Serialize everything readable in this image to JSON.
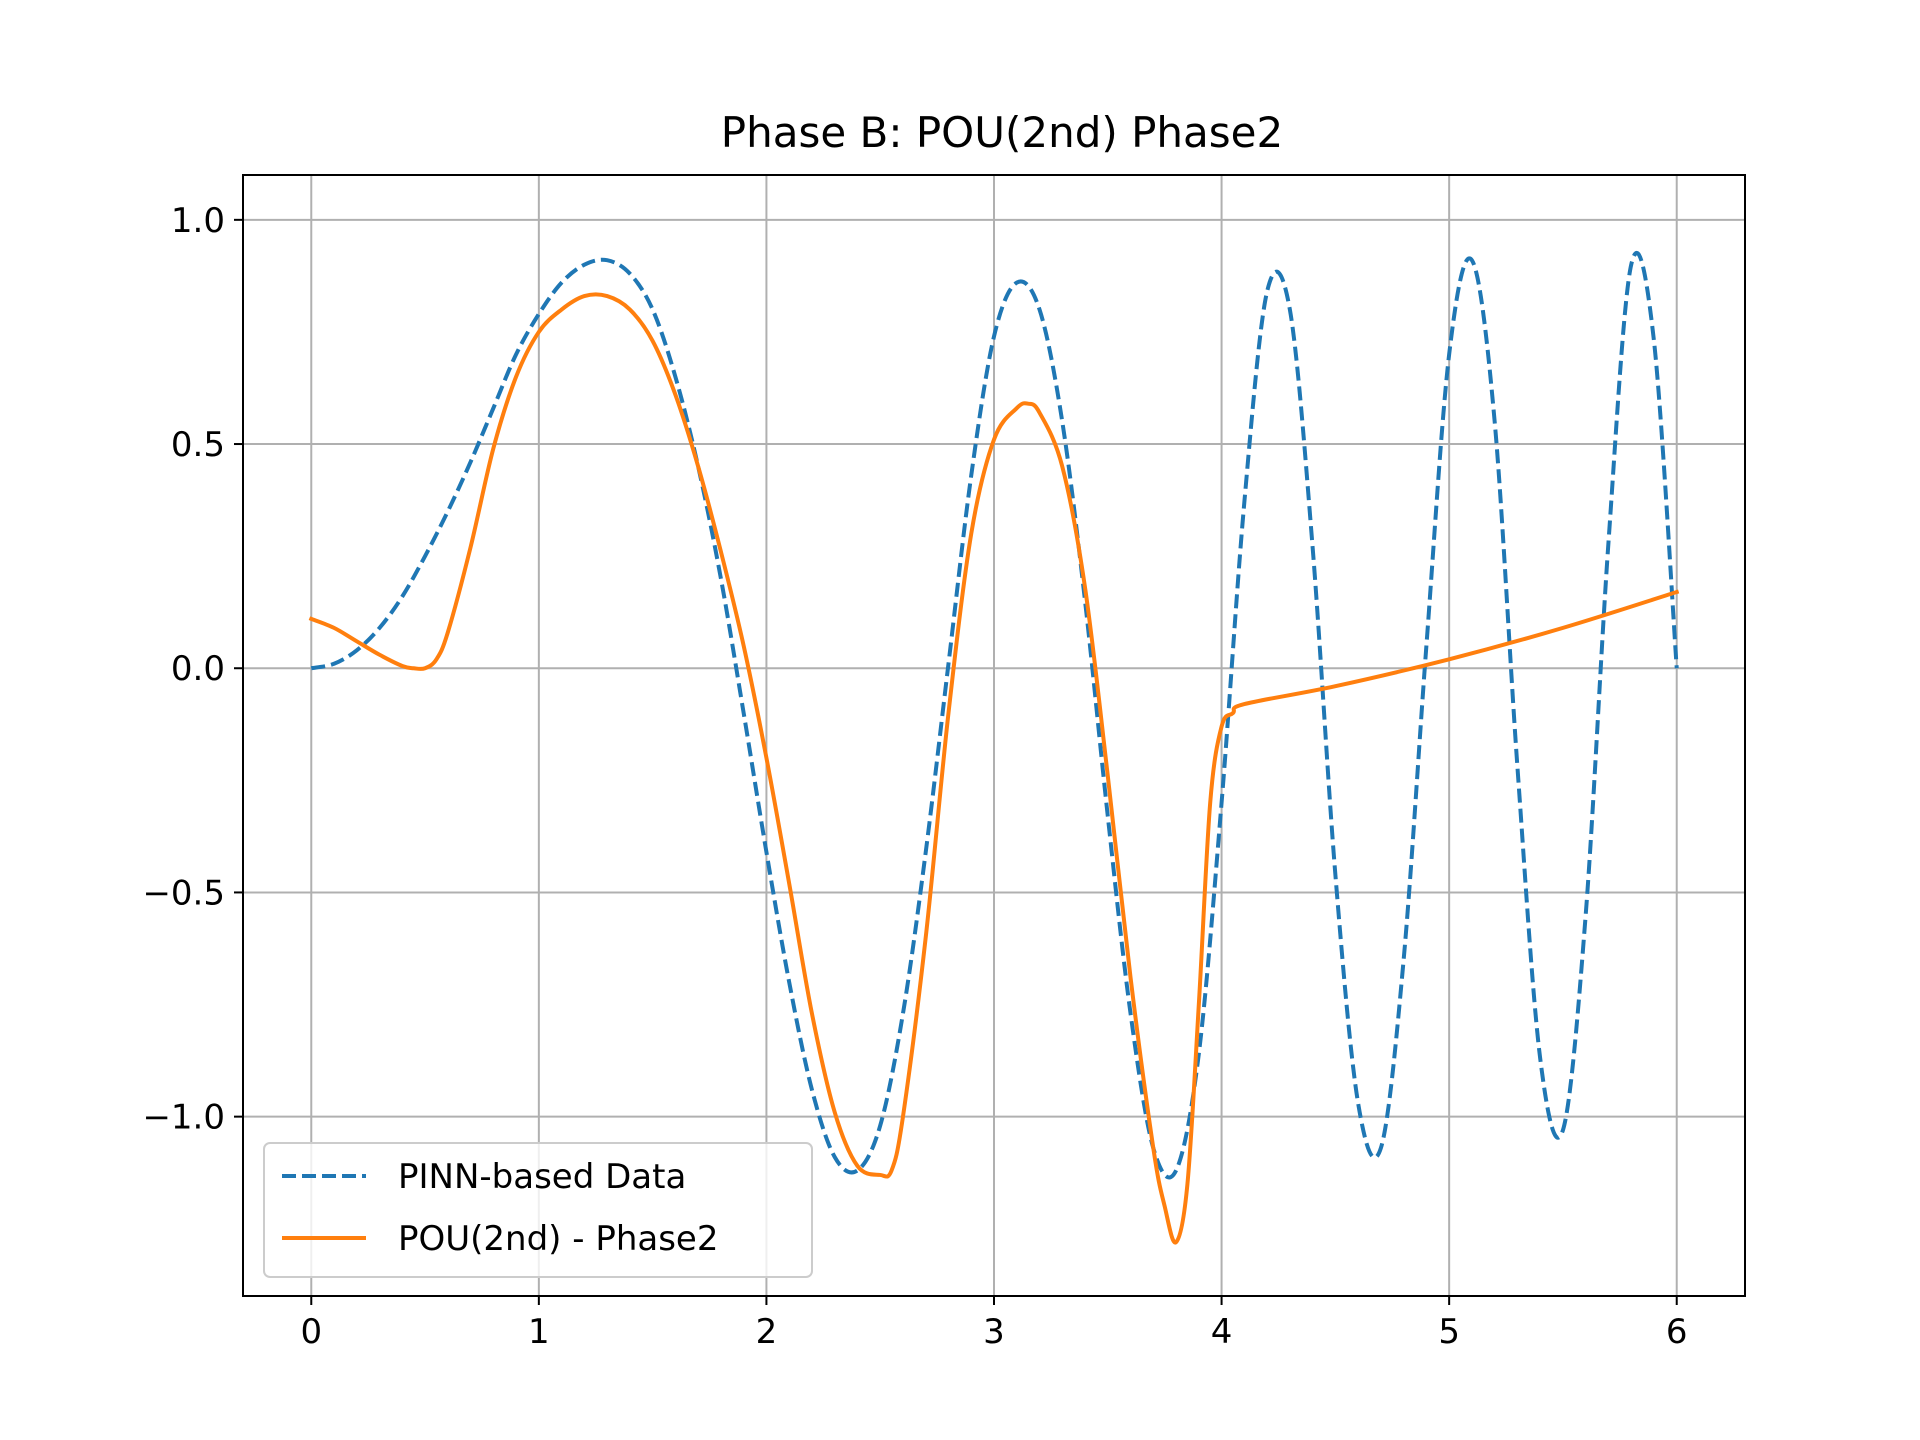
{
  "chart_data": {
    "type": "line",
    "title": "Phase B: POU(2nd) Phase2",
    "xlabel": "",
    "ylabel": "",
    "xlim": [
      -0.3,
      6.3
    ],
    "ylim": [
      -1.4,
      1.1
    ],
    "x_ticks": [
      0,
      1,
      2,
      3,
      4,
      5,
      6
    ],
    "x_tick_labels": [
      "0",
      "1",
      "2",
      "3",
      "4",
      "5",
      "6"
    ],
    "y_ticks": [
      1.0,
      0.5,
      0.0,
      -0.5,
      -1.0
    ],
    "y_tick_labels": [
      "1.0",
      "0.5",
      "0.0",
      "−0.5",
      "−1.0"
    ],
    "grid": true,
    "legend": "lower-left",
    "series": [
      {
        "name": "PINN-based Data",
        "color": "#1f77b4",
        "style": "dashed",
        "x": [
          0.0,
          0.1,
          0.2,
          0.3,
          0.4,
          0.5,
          0.6,
          0.7,
          0.8,
          0.9,
          1.0,
          1.1,
          1.2,
          1.3,
          1.4,
          1.5,
          1.6,
          1.7,
          1.8,
          1.9,
          2.0,
          2.1,
          2.2,
          2.3,
          2.4,
          2.5,
          2.6,
          2.7,
          2.8,
          2.9,
          3.0,
          3.1,
          3.2,
          3.3,
          3.4,
          3.5,
          3.6,
          3.7,
          3.8,
          3.9,
          4.0,
          4.1,
          4.2,
          4.3,
          4.4,
          4.5,
          4.6,
          4.7,
          4.8,
          4.9,
          5.0,
          5.1,
          5.2,
          5.3,
          5.4,
          5.5,
          5.6,
          5.7,
          5.8,
          5.9,
          6.0
        ],
        "y": [
          0.0,
          0.01,
          0.04,
          0.09,
          0.16,
          0.25,
          0.35,
          0.46,
          0.58,
          0.7,
          0.79,
          0.86,
          0.9,
          0.91,
          0.88,
          0.8,
          0.65,
          0.45,
          0.2,
          -0.1,
          -0.41,
          -0.7,
          -0.94,
          -1.09,
          -1.12,
          -1.02,
          -0.77,
          -0.41,
          0.01,
          0.43,
          0.74,
          0.86,
          0.8,
          0.55,
          0.15,
          -0.33,
          -0.77,
          -1.07,
          -1.12,
          -0.86,
          -0.3,
          0.37,
          0.84,
          0.8,
          0.27,
          -0.46,
          -0.97,
          -1.07,
          -0.65,
          0.05,
          0.7,
          0.91,
          0.55,
          -0.22,
          -0.87,
          -1.03,
          -0.55,
          0.28,
          0.9,
          0.73,
          0.0
        ]
      },
      {
        "name": "POU(2nd) - Phase2",
        "color": "#ff7f0e",
        "style": "solid",
        "x": [
          0.0,
          0.1,
          0.2,
          0.3,
          0.4,
          0.45,
          0.5,
          0.55,
          0.6,
          0.7,
          0.8,
          0.9,
          1.0,
          1.1,
          1.2,
          1.3,
          1.4,
          1.5,
          1.6,
          1.7,
          1.8,
          1.9,
          2.0,
          2.1,
          2.2,
          2.3,
          2.4,
          2.5,
          2.55,
          2.6,
          2.7,
          2.8,
          2.9,
          3.0,
          3.1,
          3.15,
          3.2,
          3.3,
          3.4,
          3.5,
          3.6,
          3.7,
          3.75,
          3.8,
          3.85,
          3.9,
          3.95,
          4.0,
          4.05,
          4.1,
          4.5,
          5.0,
          5.5,
          6.0
        ],
        "y": [
          0.11,
          0.09,
          0.06,
          0.03,
          0.005,
          0.0,
          0.0,
          0.02,
          0.08,
          0.27,
          0.49,
          0.65,
          0.75,
          0.8,
          0.83,
          0.83,
          0.8,
          0.73,
          0.61,
          0.45,
          0.26,
          0.05,
          -0.2,
          -0.48,
          -0.77,
          -0.99,
          -1.11,
          -1.13,
          -1.12,
          -1.0,
          -0.6,
          -0.1,
          0.3,
          0.51,
          0.58,
          0.59,
          0.57,
          0.45,
          0.18,
          -0.24,
          -0.69,
          -1.07,
          -1.2,
          -1.28,
          -1.15,
          -0.75,
          -0.3,
          -0.13,
          -0.1,
          -0.08,
          -0.04,
          0.02,
          0.09,
          0.17
        ]
      }
    ]
  }
}
